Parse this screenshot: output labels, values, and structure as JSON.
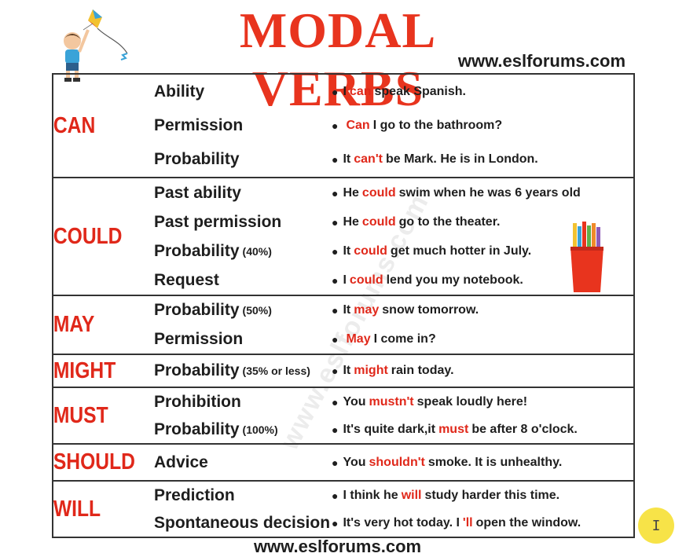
{
  "header": {
    "title": "MODAL VERBS",
    "site": "www.eslforums.com"
  },
  "footer": {
    "site": "www.eslforums.com"
  },
  "watermark": "www.eslforums.com",
  "colors": {
    "accent": "#e0281a",
    "title": "#e8341e",
    "text": "#1e1e1e"
  },
  "decorations": {
    "kid_icon": "boy-flying-kite",
    "cup_icon": "pencil-cup"
  },
  "rows": [
    {
      "verb": "CAN",
      "uses": [
        {
          "label": "Ability",
          "note": ""
        },
        {
          "label": "Permission",
          "note": ""
        },
        {
          "label": "Probability",
          "note": ""
        }
      ],
      "examples": [
        {
          "pre": "I",
          "hl": "can",
          "post": "speak Spanish."
        },
        {
          "pre": "",
          "hl": "Can",
          "post": "I go to the bathroom?"
        },
        {
          "pre": "It",
          "hl": "can't",
          "post": "be Mark. He is in London."
        }
      ]
    },
    {
      "verb": "COULD",
      "uses": [
        {
          "label": "Past ability",
          "note": ""
        },
        {
          "label": "Past permission",
          "note": ""
        },
        {
          "label": "Probability",
          "note": "(40%)"
        },
        {
          "label": "Request",
          "note": ""
        }
      ],
      "examples": [
        {
          "pre": "He",
          "hl": "could",
          "post": "swim when he was 6 years old"
        },
        {
          "pre": "He",
          "hl": "could",
          "post": "go to the theater."
        },
        {
          "pre": "It",
          "hl": "could",
          "post": "get much hotter in July."
        },
        {
          "pre": "I",
          "hl": "could",
          "post": "lend you my notebook."
        }
      ]
    },
    {
      "verb": "MAY",
      "uses": [
        {
          "label": "Probability",
          "note": "(50%)"
        },
        {
          "label": "Permission",
          "note": ""
        }
      ],
      "examples": [
        {
          "pre": "It",
          "hl": "may",
          "post": "snow tomorrow."
        },
        {
          "pre": "",
          "hl": "May",
          "post": "I come in?"
        }
      ]
    },
    {
      "verb": "MIGHT",
      "uses": [
        {
          "label": "Probability",
          "note": "(35% or less)"
        }
      ],
      "examples": [
        {
          "pre": "It",
          "hl": "might",
          "post": "rain today."
        }
      ]
    },
    {
      "verb": "MUST",
      "uses": [
        {
          "label": "Prohibition",
          "note": ""
        },
        {
          "label": "Probability",
          "note": "(100%)"
        }
      ],
      "examples": [
        {
          "pre": "You",
          "hl": "mustn't",
          "post": "speak loudly here!"
        },
        {
          "pre": "It's quite dark,it",
          "hl": "must",
          "post": "be after 8 o'clock."
        }
      ]
    },
    {
      "verb": "SHOULD",
      "uses": [
        {
          "label": "Advice",
          "note": ""
        }
      ],
      "examples": [
        {
          "pre": "You",
          "hl": "shouldn't",
          "post": "smoke. It is unhealthy."
        }
      ]
    },
    {
      "verb": "WILL",
      "uses": [
        {
          "label": "Prediction",
          "note": ""
        },
        {
          "label": "Spontaneous decision",
          "note": ""
        }
      ],
      "examples": [
        {
          "pre": "I think he",
          "hl": "will",
          "post": "study harder this time."
        },
        {
          "pre": "It's very hot today. I",
          "hl": "'ll",
          "post": "open the window."
        }
      ]
    }
  ],
  "cursor": {
    "label": "I"
  }
}
